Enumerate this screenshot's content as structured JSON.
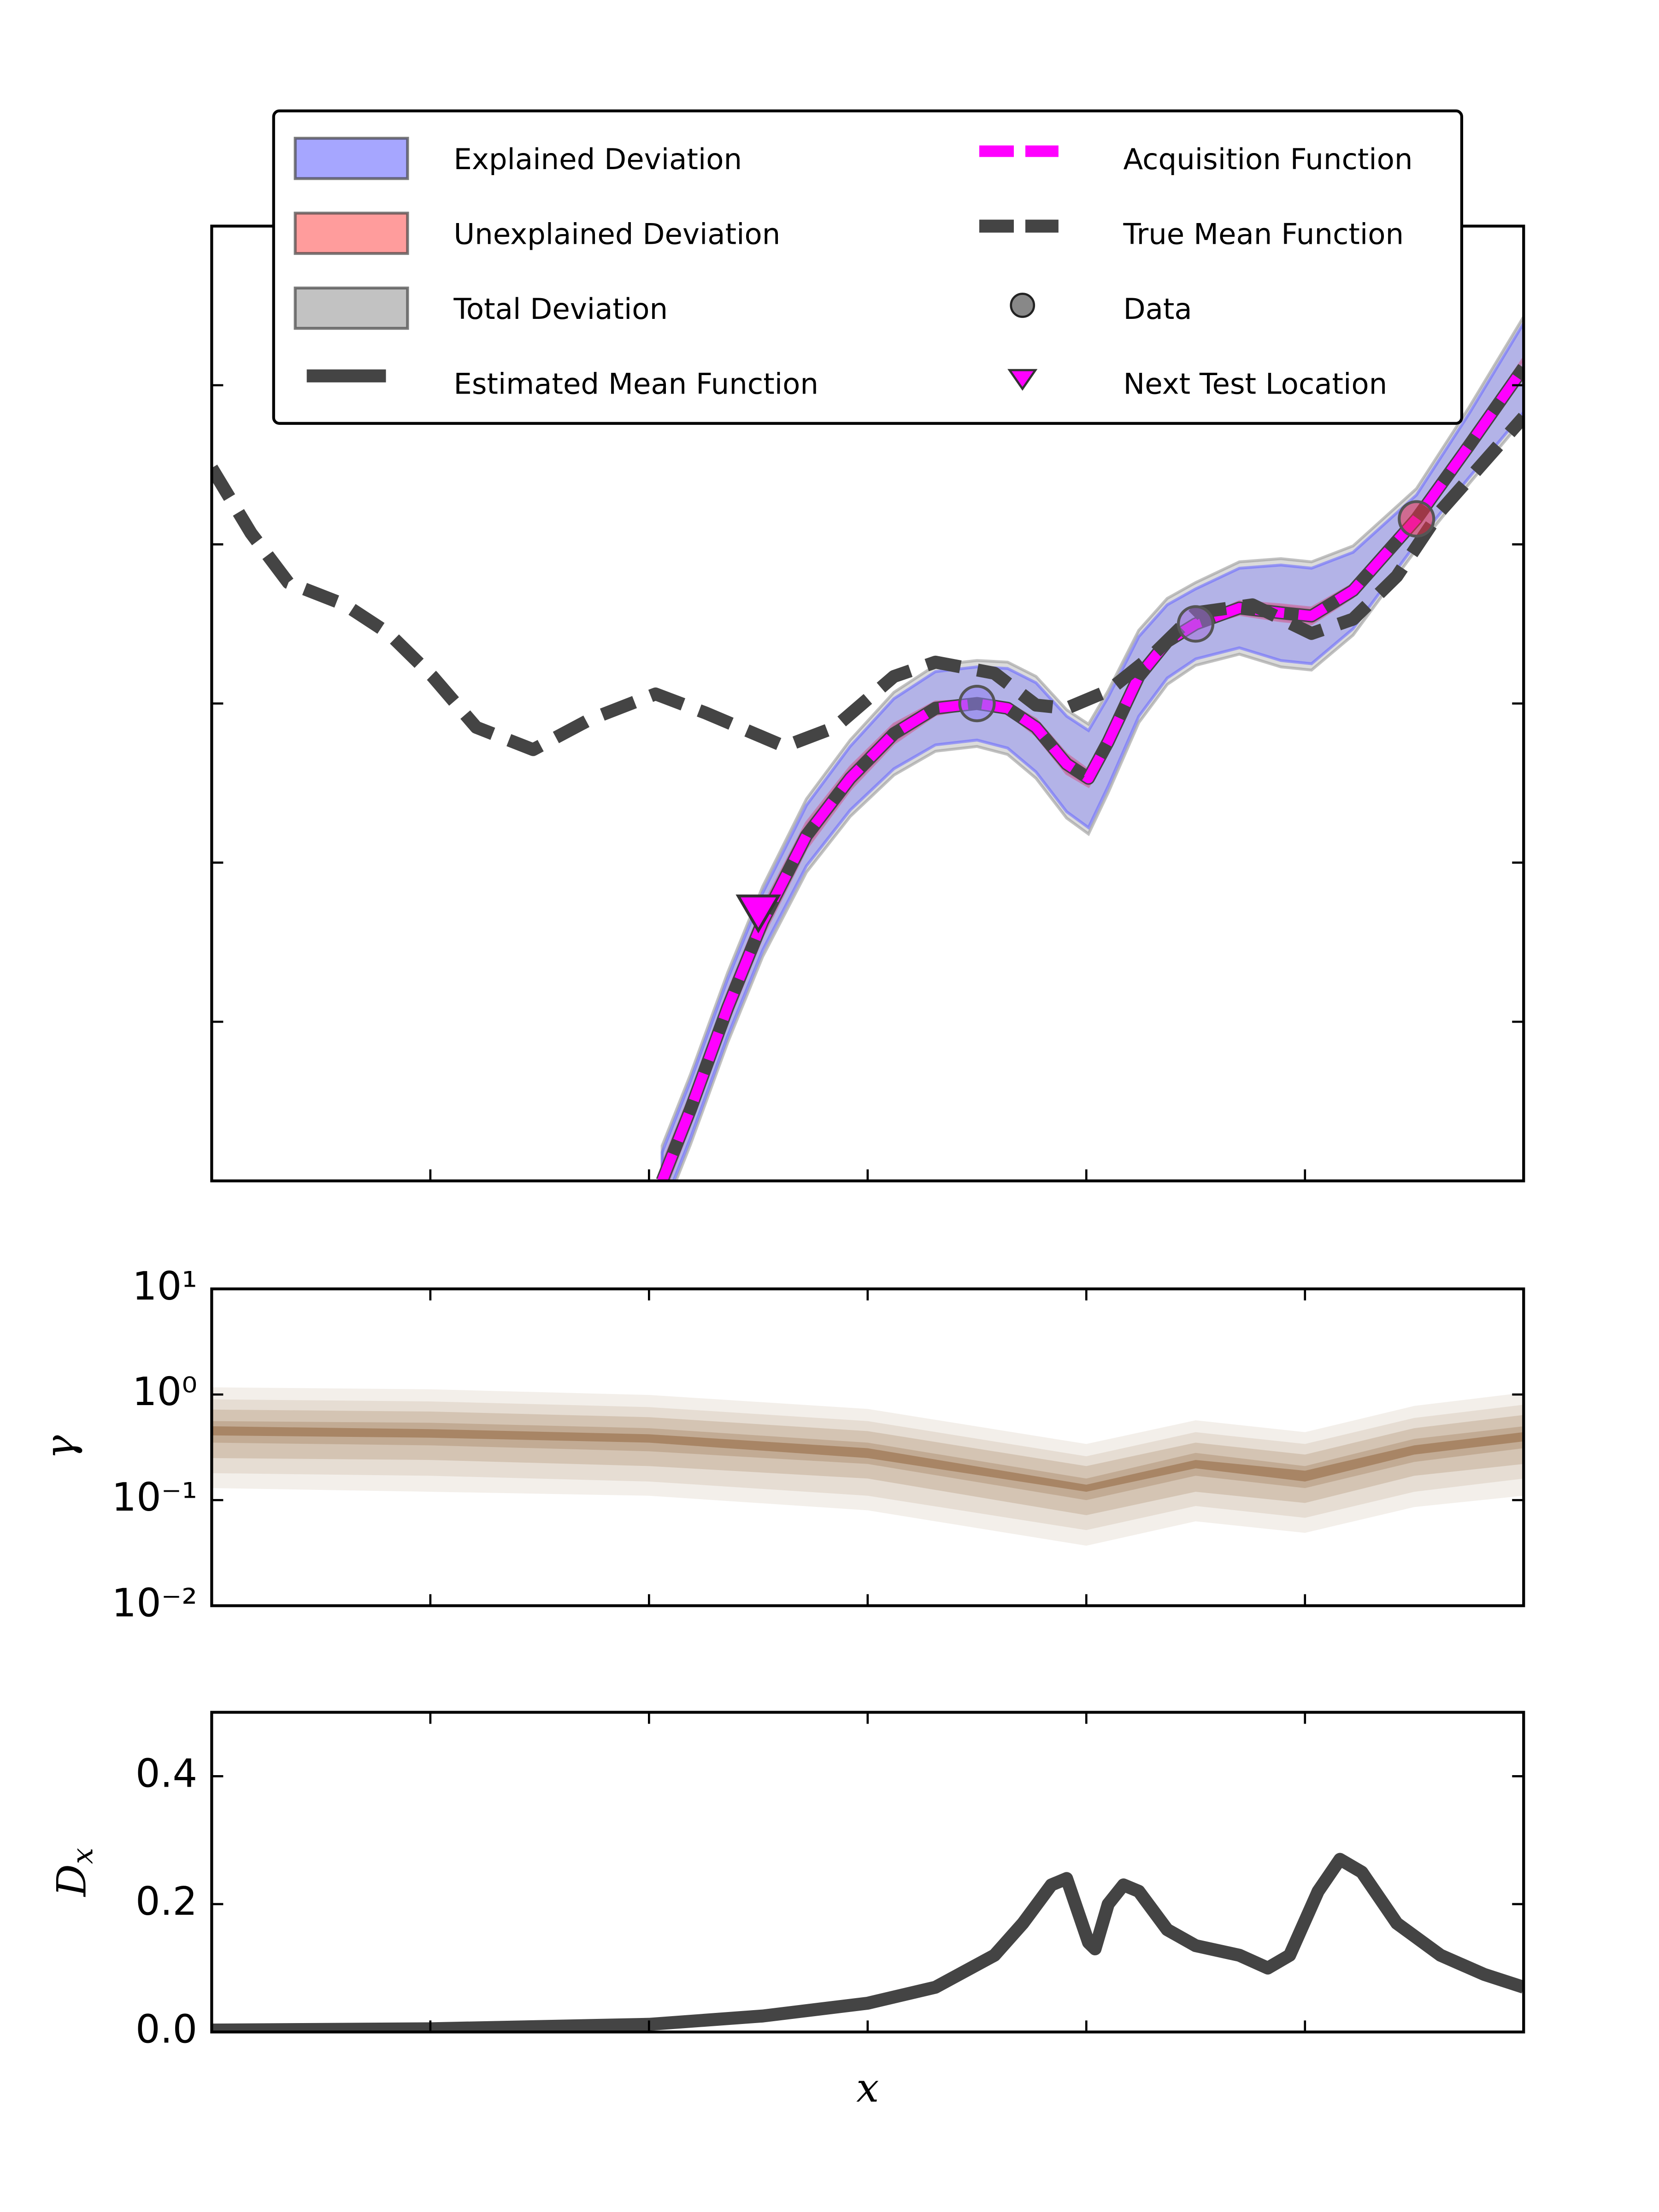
{
  "chart_data": [
    {
      "type": "line",
      "legend": "upper center",
      "tick_labels": false,
      "xlim": [
        0,
        60
      ],
      "xticks": [
        10,
        20,
        30,
        40,
        50
      ],
      "ylim": [
        0,
        60
      ],
      "yticks": [
        10,
        20,
        30,
        40,
        50
      ],
      "series": [
        {
          "name": "Explained Deviation",
          "kind": "band",
          "color": "#6b6bff",
          "x": [
            20.6,
            21.9,
            23.6,
            25.2,
            27.2,
            29.2,
            31.2,
            33.1,
            35.0,
            36.4,
            37.7,
            39.1,
            40.1,
            41.0,
            42.4,
            43.7,
            45.0,
            47.0,
            48.9,
            50.3,
            52.2,
            55.1,
            57.5,
            60
          ],
          "lower": [
            -1.8,
            2.7,
            9.1,
            14.5,
            19.8,
            23.3,
            25.9,
            27.4,
            27.7,
            27.2,
            25.7,
            23.2,
            22.2,
            24.8,
            29.2,
            31.6,
            32.8,
            33.5,
            32.7,
            32.5,
            34.7,
            40.1,
            44.2,
            48.3
          ],
          "upper": [
            1.8,
            6.3,
            12.7,
            18.1,
            23.6,
            27.3,
            30.3,
            32.0,
            32.3,
            32.2,
            31.3,
            29.2,
            28.3,
            30.4,
            34.2,
            36.2,
            37.2,
            38.5,
            38.7,
            38.5,
            39.5,
            43.1,
            48.2,
            53.9
          ]
        },
        {
          "name": "Unexplained Deviation",
          "kind": "band",
          "color": "#ff5a5a",
          "x": [
            20.6,
            21.9,
            23.6,
            25.2,
            27.2,
            29.2,
            31.2,
            33.1,
            35.0,
            36.4,
            37.7,
            39.1,
            40.1,
            41.0,
            42.4,
            43.7,
            45.0,
            47.0,
            48.9,
            50.3,
            52.2,
            55.1,
            57.5,
            60
          ],
          "lower": [
            -1.0,
            3.6,
            10.0,
            15.4,
            20.9,
            24.6,
            27.5,
            29.3,
            29.8,
            29.4,
            28.0,
            25.6,
            24.8,
            27.1,
            31.2,
            33.5,
            34.8,
            35.6,
            35.2,
            35.0,
            36.7,
            41.4,
            45.8,
            50.5
          ],
          "upper": [
            1.0,
            5.4,
            11.8,
            17.2,
            22.5,
            26.0,
            28.7,
            30.1,
            30.2,
            30.0,
            29.0,
            26.8,
            25.8,
            28.1,
            32.2,
            34.3,
            35.2,
            36.4,
            36.2,
            36.0,
            37.5,
            41.8,
            46.6,
            51.7
          ]
        },
        {
          "name": "Total Deviation",
          "kind": "band",
          "color": "#999999",
          "x": [
            20.6,
            21.9,
            23.6,
            25.2,
            27.2,
            29.2,
            31.2,
            33.1,
            35.0,
            36.4,
            37.7,
            39.1,
            40.1,
            41.0,
            42.4,
            43.7,
            45.0,
            47.0,
            48.9,
            50.3,
            52.2,
            55.1,
            57.5,
            60
          ],
          "lower": [
            -2.2,
            2.3,
            8.7,
            14.1,
            19.4,
            22.9,
            25.5,
            27.0,
            27.3,
            26.8,
            25.3,
            22.8,
            21.8,
            24.4,
            28.8,
            31.2,
            32.4,
            33.1,
            32.3,
            32.1,
            34.3,
            39.7,
            43.8,
            47.9
          ],
          "upper": [
            2.2,
            6.7,
            13.1,
            18.5,
            24.0,
            27.7,
            30.7,
            32.4,
            32.7,
            32.6,
            31.7,
            29.6,
            28.7,
            30.8,
            34.6,
            36.6,
            37.6,
            38.9,
            39.1,
            38.9,
            39.9,
            43.5,
            48.6,
            54.3
          ]
        },
        {
          "name": "Estimated Mean Function",
          "kind": "line",
          "dashed": false,
          "color": "#444444",
          "x": [
            20.6,
            21.9,
            23.6,
            25.2,
            27.2,
            29.2,
            31.2,
            33.1,
            35.0,
            36.4,
            37.7,
            39.1,
            40.1,
            41.0,
            42.4,
            43.7,
            45.0,
            47.0,
            48.9,
            50.3,
            52.2,
            55.1,
            57.5,
            60
          ],
          "values": [
            0,
            4.5,
            10.9,
            16.3,
            21.7,
            25.3,
            28.1,
            29.7,
            30.0,
            29.7,
            28.5,
            26.2,
            25.3,
            27.6,
            31.7,
            33.9,
            35.0,
            36.0,
            35.7,
            35.5,
            37.1,
            41.6,
            46.2,
            51.1
          ]
        },
        {
          "name": "Acquisition Function",
          "kind": "line",
          "dashed": true,
          "color": "#ff00ff",
          "x": [
            20.6,
            21.9,
            23.6,
            25.2,
            27.2,
            29.2,
            31.2,
            33.1,
            35.0,
            36.4,
            37.7,
            39.1,
            40.1,
            41.0,
            42.4,
            43.7,
            45.0,
            47.0,
            48.9,
            50.3,
            52.2,
            55.1,
            57.5,
            60
          ],
          "values": [
            0,
            4.5,
            10.9,
            16.3,
            21.7,
            25.3,
            28.1,
            29.7,
            30.0,
            29.7,
            28.5,
            26.2,
            25.3,
            27.6,
            31.7,
            33.9,
            35.0,
            36.0,
            35.7,
            35.5,
            37.1,
            41.6,
            46.2,
            51.1
          ]
        },
        {
          "name": "True Mean Function",
          "kind": "line",
          "dashed": true,
          "color": "#444444",
          "x": [
            0,
            1.8,
            3.5,
            6.1,
            8.1,
            10.1,
            12.1,
            14.7,
            17.3,
            20.3,
            22.6,
            26.2,
            28.5,
            31.2,
            33.1,
            35.8,
            37.7,
            39.1,
            41.0,
            43.0,
            45.0,
            47.6,
            50.3,
            52.2,
            54.2,
            56.2,
            58.2,
            60
          ],
          "values": [
            44.8,
            40.7,
            37.6,
            36.2,
            34.4,
            31.7,
            28.5,
            27.1,
            29.0,
            30.6,
            29.4,
            27.3,
            28.5,
            31.7,
            32.6,
            31.9,
            29.9,
            29.7,
            30.8,
            33.0,
            35.7,
            36.2,
            34.4,
            35.3,
            38.0,
            42.1,
            45.2,
            48.0
          ]
        },
        {
          "name": "Data",
          "kind": "scatter",
          "color": "#555555",
          "point_colors": [
            "#8f7ff0",
            "#a070d8",
            "#e8304a"
          ],
          "x": [
            35.0,
            45.0,
            55.1
          ],
          "values": [
            30.0,
            35.0,
            41.6
          ]
        },
        {
          "name": "Next Test Location",
          "kind": "marker",
          "color": "#ff00ff",
          "x": [
            25.0
          ],
          "values": [
            17.0
          ]
        }
      ]
    },
    {
      "type": "contour",
      "ylabel": "γ",
      "log_y": true,
      "tick_labels": true,
      "xlim": [
        0,
        60
      ],
      "xticks": [
        10,
        20,
        30,
        40,
        50
      ],
      "ylim": [
        0.01,
        10
      ],
      "yticks": [
        {
          "value": 10,
          "label": "10¹"
        },
        {
          "value": 1,
          "label": "10⁰"
        },
        {
          "value": 0.1,
          "label": "10⁻¹"
        },
        {
          "value": 0.01,
          "label": "10⁻²"
        }
      ],
      "x": [
        0,
        10,
        20,
        30,
        40,
        45,
        50,
        55,
        60
      ],
      "series": [
        {
          "color": "#f3efea",
          "lower": [
            0.13,
            0.12,
            0.11,
            0.08,
            0.037,
            0.063,
            0.049,
            0.086,
            0.11
          ],
          "upper": [
            1.17,
            1.12,
            0.99,
            0.73,
            0.34,
            0.57,
            0.44,
            0.78,
            1.04
          ]
        },
        {
          "color": "#e6ddd3",
          "lower": [
            0.18,
            0.17,
            0.15,
            0.11,
            0.052,
            0.088,
            0.068,
            0.12,
            0.16
          ],
          "upper": [
            0.9,
            0.86,
            0.76,
            0.56,
            0.26,
            0.44,
            0.34,
            0.6,
            0.8
          ]
        },
        {
          "color": "#d4c4b3",
          "lower": [
            0.25,
            0.24,
            0.21,
            0.16,
            0.072,
            0.12,
            0.094,
            0.17,
            0.22
          ],
          "upper": [
            0.72,
            0.69,
            0.61,
            0.45,
            0.21,
            0.35,
            0.27,
            0.48,
            0.64
          ]
        },
        {
          "color": "#c2ab94",
          "lower": [
            0.35,
            0.33,
            0.29,
            0.22,
            0.1,
            0.17,
            0.13,
            0.23,
            0.31
          ],
          "upper": [
            0.56,
            0.54,
            0.48,
            0.35,
            0.16,
            0.28,
            0.21,
            0.38,
            0.5
          ]
        },
        {
          "color": "#a88565",
          "lower": [
            0.41,
            0.39,
            0.35,
            0.25,
            0.12,
            0.2,
            0.15,
            0.27,
            0.36
          ],
          "upper": [
            0.5,
            0.47,
            0.42,
            0.31,
            0.14,
            0.24,
            0.19,
            0.33,
            0.44
          ]
        }
      ]
    },
    {
      "type": "line",
      "ylabel": "D_x",
      "xlabel": "x",
      "tick_labels": true,
      "xlim": [
        0,
        60
      ],
      "xticks": [
        10,
        20,
        30,
        40,
        50
      ],
      "ylim": [
        0,
        0.5
      ],
      "yticks": [
        {
          "value": 0,
          "label": "0.0"
        },
        0.2,
        0.4
      ],
      "x": [
        0,
        10,
        20,
        25.2,
        30,
        33.1,
        35.8,
        37.1,
        38.4,
        39.1,
        40.1,
        40.4,
        41.0,
        41.7,
        42.4,
        43.7,
        45.0,
        47.0,
        48.3,
        49.3,
        50.6,
        51.6,
        52.6,
        54.2,
        56.2,
        58.2,
        60
      ],
      "series": [
        {
          "color": "#444444",
          "values": [
            0.003,
            0.005,
            0.012,
            0.025,
            0.045,
            0.07,
            0.12,
            0.17,
            0.23,
            0.24,
            0.14,
            0.13,
            0.2,
            0.23,
            0.22,
            0.16,
            0.135,
            0.12,
            0.1,
            0.12,
            0.22,
            0.27,
            0.25,
            0.17,
            0.12,
            0.09,
            0.07
          ]
        }
      ]
    }
  ]
}
